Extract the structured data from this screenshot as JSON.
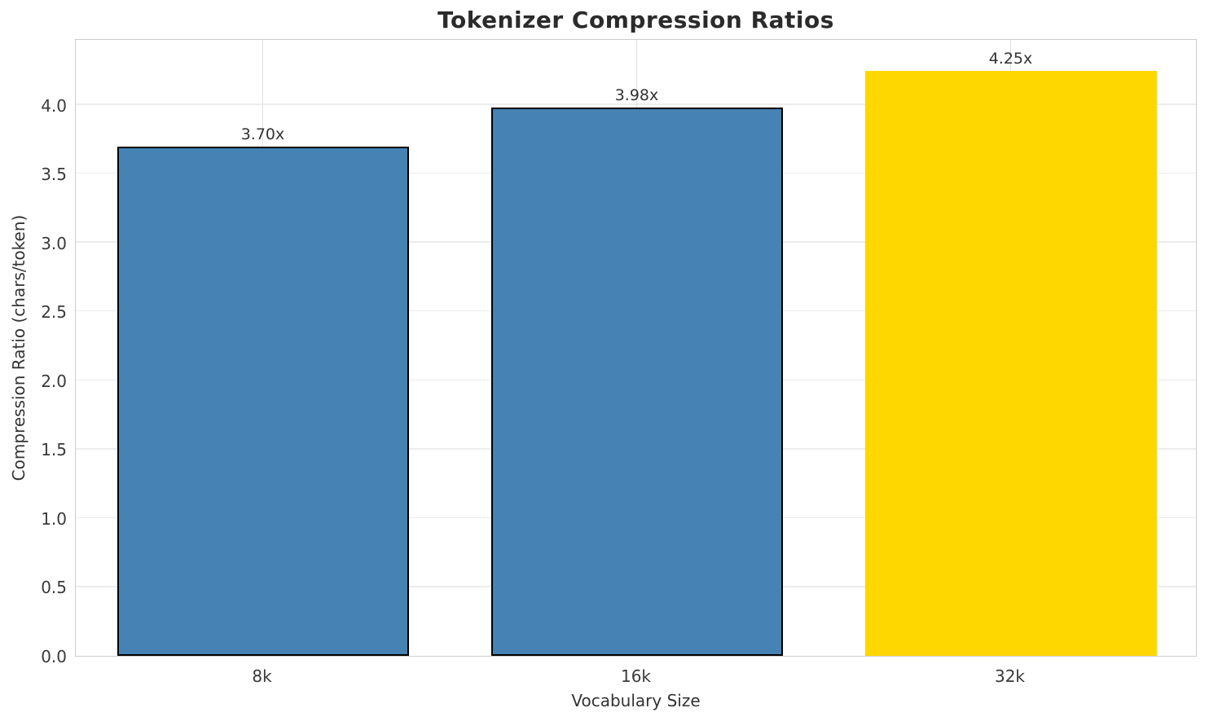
{
  "chart_data": {
    "type": "bar",
    "title": "Tokenizer Compression Ratios",
    "xlabel": "Vocabulary Size",
    "ylabel": "Compression Ratio (chars/token)",
    "categories": [
      "8k",
      "16k",
      "32k"
    ],
    "values": [
      3.7,
      3.98,
      4.25
    ],
    "bar_labels": [
      "3.70x",
      "3.98x",
      "4.25x"
    ],
    "bar_colors": [
      "#4682B4",
      "#4682B4",
      "#FFD700"
    ],
    "bar_edge_colors": [
      "#000000",
      "#000000",
      "#FFD700"
    ],
    "ylim": [
      0,
      4.485
    ],
    "yticks": [
      0.0,
      0.5,
      1.0,
      1.5,
      2.0,
      2.5,
      3.0,
      3.5,
      4.0
    ],
    "grid": "both",
    "legend": "none",
    "background_color": "#ffffff",
    "grid_color": "#ececec",
    "spine_color": "#cccccc"
  }
}
